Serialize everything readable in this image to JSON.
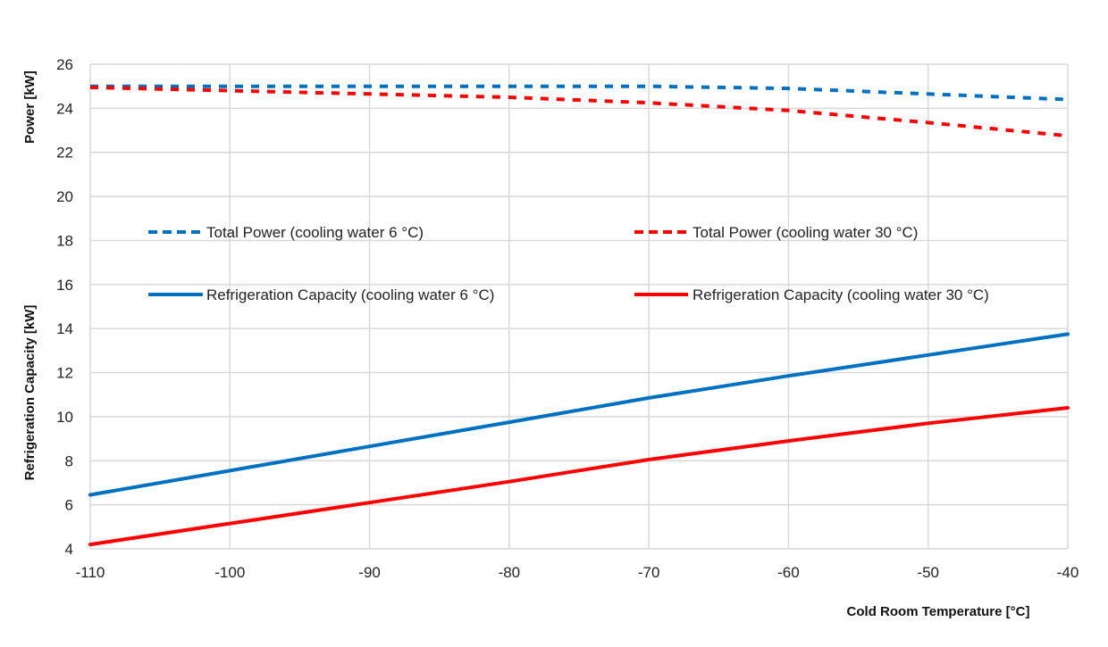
{
  "chart_data": {
    "type": "line",
    "title": "",
    "xlabel": "Cold Room Temperature [°C]",
    "ylabel_upper": "Power [kW]",
    "ylabel_lower": "Refrigeration Capacity  [kW]",
    "xlim": [
      -110,
      -40
    ],
    "ylim": [
      4,
      26
    ],
    "x_ticks": [
      -110,
      -100,
      -90,
      -80,
      -70,
      -60,
      -50,
      -40
    ],
    "y_ticks": [
      4,
      6,
      8,
      10,
      12,
      14,
      16,
      18,
      20,
      22,
      24,
      26
    ],
    "grid": true,
    "legend_position": "center",
    "x": [
      -110,
      -100,
      -90,
      -80,
      -70,
      -60,
      -50,
      -40
    ],
    "series": [
      {
        "name": "Total Power (cooling water 6 °C)",
        "color": "#0070C0",
        "style": "dashed",
        "values": [
          25.0,
          25.0,
          25.0,
          25.0,
          25.0,
          24.9,
          24.65,
          24.4
        ]
      },
      {
        "name": "Total Power (cooling water 30 °C)",
        "color": "#FF0000",
        "style": "dashed",
        "values": [
          24.95,
          24.8,
          24.65,
          24.5,
          24.25,
          23.9,
          23.35,
          22.75
        ]
      },
      {
        "name": "Refrigeration Capacity (cooling water 6 °C)",
        "color": "#0070C0",
        "style": "solid",
        "values": [
          6.45,
          7.55,
          8.65,
          9.75,
          10.85,
          11.85,
          12.8,
          13.75
        ]
      },
      {
        "name": "Refrigeration Capacity (cooling water 30 °C)",
        "color": "#FF0000",
        "style": "solid",
        "values": [
          4.2,
          5.15,
          6.1,
          7.05,
          8.05,
          8.9,
          9.7,
          10.4
        ]
      }
    ]
  }
}
